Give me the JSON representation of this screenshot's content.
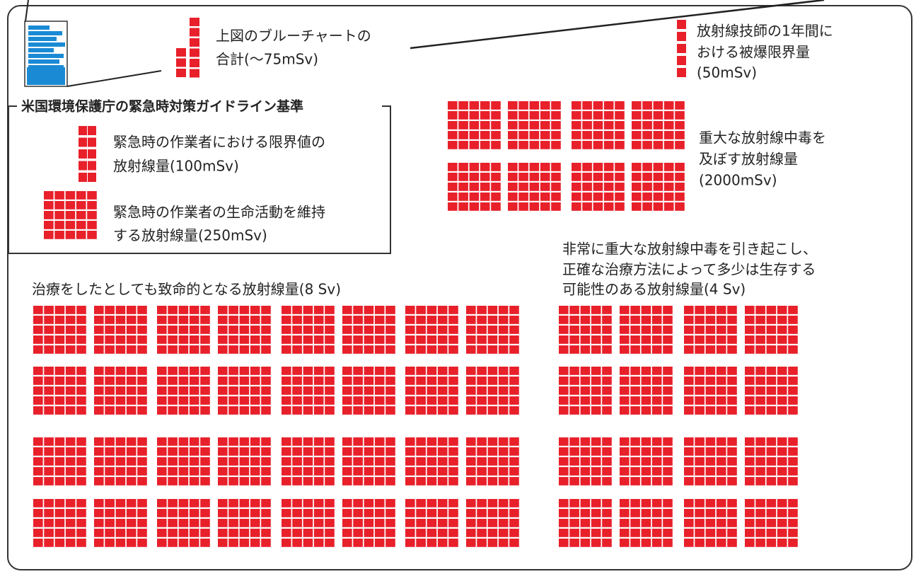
{
  "blue_chart_total": {
    "lines": [
      "上図のブルーチャートの",
      "合計(〜75mSv)"
    ]
  },
  "radiographer_limit": {
    "lines": [
      "放射線技師の1年間に",
      "おける被爆限界量",
      "(50mSv)"
    ]
  },
  "epa_guidelines": {
    "title": "米国環境保護庁の緊急時対策ガイドライン基準",
    "items": [
      {
        "lines": [
          "緊急時の作業者における限界値の",
          "放射線量(100mSv)"
        ]
      },
      {
        "lines": [
          "緊急時の作業者の生命活動を維持",
          "する放射線量(250mSv)"
        ]
      }
    ]
  },
  "severe_poisoning": {
    "lines": [
      "重大な放射線中毒を",
      "及ぼす放射線量",
      "(2000mSv)"
    ]
  },
  "survivable_dose": {
    "lines": [
      "非常に重大な放射線中毒を引き起こし、",
      "正確な治療方法によって多少は生存する",
      "可能性のある放射線量(4 Sv)"
    ]
  },
  "fatal_dose": {
    "lines": [
      "治療をしたとしても致命的となる放射線量(8 Sv)"
    ]
  }
}
